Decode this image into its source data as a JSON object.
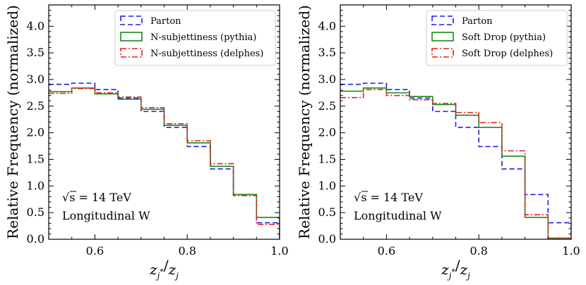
{
  "chart_data": [
    {
      "type": "step-histogram",
      "xlabel": "z_j*/z_j",
      "ylabel": "Relative Frequency (normalized)",
      "xlim": [
        0.5,
        1.0
      ],
      "ylim": [
        0.0,
        4.4
      ],
      "xticks": [
        "0.6",
        "0.8",
        "1.0"
      ],
      "yticks": [
        "0.0",
        "0.5",
        "1.0",
        "1.5",
        "2.0",
        "2.5",
        "3.0",
        "3.5",
        "4.0"
      ],
      "annotations": [
        "√s = 14 TeV",
        "Longitudinal W"
      ],
      "bin_edges": [
        0.5,
        0.55,
        0.6,
        0.65,
        0.7,
        0.75,
        0.8,
        0.85,
        0.9,
        0.95,
        1.0
      ],
      "series": [
        {
          "name": "Parton",
          "color": "#1f1fe6",
          "style": "dashed",
          "values": [
            2.91,
            2.93,
            2.81,
            2.65,
            2.4,
            2.1,
            1.74,
            1.32,
            0.84,
            0.31
          ]
        },
        {
          "name": "N-subjettiness (pythia)",
          "color": "#1a8a1a",
          "style": "solid",
          "values": [
            2.77,
            2.84,
            2.73,
            2.63,
            2.44,
            2.14,
            1.81,
            1.37,
            0.84,
            0.41
          ]
        },
        {
          "name": "N-subjettiness (delphes)",
          "color": "#e61e1e",
          "style": "dashdot",
          "values": [
            2.74,
            2.83,
            2.75,
            2.67,
            2.47,
            2.17,
            1.85,
            1.42,
            0.82,
            0.28
          ]
        }
      ]
    },
    {
      "type": "step-histogram",
      "xlabel": "z_j*/z_j",
      "ylabel": "Relative Frequency (normalized)",
      "xlim": [
        0.5,
        1.0
      ],
      "ylim": [
        0.0,
        4.4
      ],
      "xticks": [
        "0.6",
        "0.8",
        "1.0"
      ],
      "yticks": [
        "0.0",
        "0.5",
        "1.0",
        "1.5",
        "2.0",
        "2.5",
        "3.0",
        "3.5",
        "4.0"
      ],
      "annotations": [
        "√s = 14 TeV",
        "Longitudinal W"
      ],
      "bin_edges": [
        0.5,
        0.55,
        0.6,
        0.65,
        0.7,
        0.75,
        0.8,
        0.85,
        0.9,
        0.95,
        1.0
      ],
      "series": [
        {
          "name": "Parton",
          "color": "#1f1fe6",
          "style": "dashed",
          "values": [
            2.91,
            2.93,
            2.81,
            2.65,
            2.4,
            2.1,
            1.74,
            1.32,
            0.84,
            0.31
          ]
        },
        {
          "name": "Soft Drop (pythia)",
          "color": "#1a8a1a",
          "style": "solid",
          "values": [
            2.78,
            2.84,
            2.75,
            2.68,
            2.53,
            2.33,
            2.1,
            1.56,
            0.41,
            0.02
          ]
        },
        {
          "name": "Soft Drop (delphes)",
          "color": "#e61e1e",
          "style": "dashdot",
          "values": [
            2.66,
            2.81,
            2.7,
            2.62,
            2.55,
            2.38,
            2.19,
            1.66,
            0.46,
            0.02
          ]
        }
      ]
    }
  ]
}
